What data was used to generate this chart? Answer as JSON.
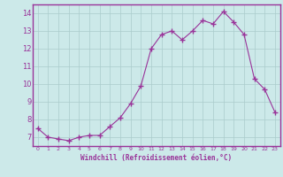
{
  "x": [
    0,
    1,
    2,
    3,
    4,
    5,
    6,
    7,
    8,
    9,
    10,
    11,
    12,
    13,
    14,
    15,
    16,
    17,
    18,
    19,
    20,
    21,
    22,
    23
  ],
  "y": [
    7.5,
    7.0,
    6.9,
    6.8,
    7.0,
    7.1,
    7.1,
    7.6,
    8.1,
    8.9,
    9.9,
    12.0,
    12.8,
    13.0,
    12.5,
    13.0,
    13.6,
    13.4,
    14.1,
    13.5,
    12.8,
    10.3,
    9.7,
    8.4
  ],
  "line_color": "#993399",
  "marker": "+",
  "xlabel": "Windchill (Refroidissement éolien,°C)",
  "xlim": [
    -0.5,
    23.5
  ],
  "ylim": [
    6.5,
    14.5
  ],
  "yticks": [
    7,
    8,
    9,
    10,
    11,
    12,
    13,
    14
  ],
  "xticks": [
    0,
    1,
    2,
    3,
    4,
    5,
    6,
    7,
    8,
    9,
    10,
    11,
    12,
    13,
    14,
    15,
    16,
    17,
    18,
    19,
    20,
    21,
    22,
    23
  ],
  "bg_color": "#cce9e9",
  "grid_color": "#aacccc",
  "line_purple": "#993399",
  "tick_color": "#993399",
  "label_color": "#993399"
}
